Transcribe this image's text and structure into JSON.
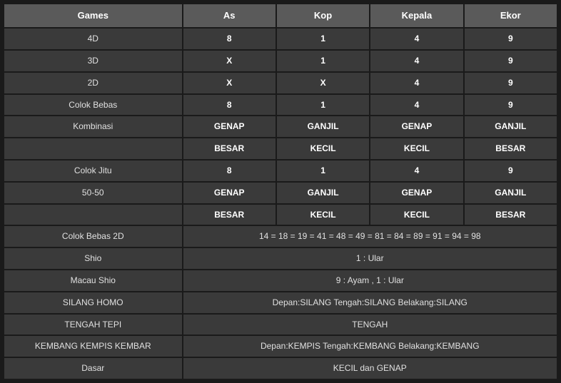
{
  "header": {
    "col1": "Games",
    "col2": "As",
    "col3": "Kop",
    "col4": "Kepala",
    "col5": "Ekor"
  },
  "rows": [
    {
      "label": "4D",
      "as": "8",
      "kop": "1",
      "kepala": "4",
      "ekor": "9",
      "bold": true
    },
    {
      "label": "3D",
      "as": "X",
      "kop": "1",
      "kepala": "4",
      "ekor": "9",
      "bold": true
    },
    {
      "label": "2D",
      "as": "X",
      "kop": "X",
      "kepala": "4",
      "ekor": "9",
      "bold": true
    },
    {
      "label": "Colok Bebas",
      "as": "8",
      "kop": "1",
      "kepala": "4",
      "ekor": "9",
      "bold": true
    },
    {
      "label": "Kombinasi",
      "as": "GENAP",
      "kop": "GANJIL",
      "kepala": "GENAP",
      "ekor": "GANJIL",
      "bold": true
    },
    {
      "label": "",
      "as": "BESAR",
      "kop": "KECIL",
      "kepala": "KECIL",
      "ekor": "BESAR",
      "bold": true
    },
    {
      "label": "Colok Jitu",
      "as": "8",
      "kop": "1",
      "kepala": "4",
      "ekor": "9",
      "bold": true
    },
    {
      "label": "50-50",
      "as": "GENAP",
      "kop": "GANJIL",
      "kepala": "GENAP",
      "ekor": "GANJIL",
      "bold": true
    },
    {
      "label": "",
      "as": "BESAR",
      "kop": "KECIL",
      "kepala": "KECIL",
      "ekor": "BESAR",
      "bold": true
    }
  ],
  "spanRows": [
    {
      "label": "Colok Bebas 2D",
      "value": "14 = 18 = 19 = 41 = 48 = 49 = 81 = 84 = 89 = 91 = 94 = 98"
    },
    {
      "label": "Shio",
      "value": "1 : Ular"
    },
    {
      "label": "Macau Shio",
      "value": "9 : Ayam , 1 : Ular"
    },
    {
      "label": "SILANG HOMO",
      "value": "Depan:SILANG Tengah:SILANG Belakang:SILANG"
    },
    {
      "label": "TENGAH TEPI",
      "value": "TENGAH"
    },
    {
      "label": "KEMBANG KEMPIS KEMBAR",
      "value": "Depan:KEMPIS Tengah:KEMBANG Belakang:KEMBANG"
    },
    {
      "label": "Dasar",
      "value": "KECIL dan GENAP"
    }
  ],
  "style": {
    "header_bg": "#5a5a5a",
    "cell_bg": "#3a3a3a",
    "page_bg": "#1a1a1a",
    "text_color": "#e0e0e0",
    "header_text_color": "#ffffff",
    "font_size": 12,
    "header_font_size": 13
  }
}
